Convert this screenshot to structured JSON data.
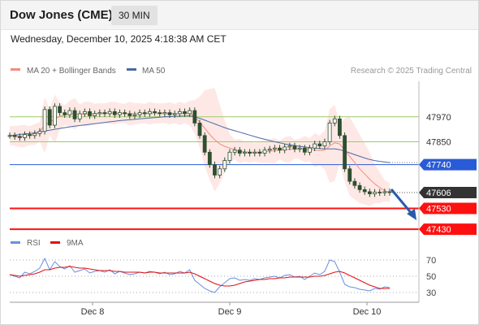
{
  "header": {
    "title": "Dow Jones (CME)",
    "timeframe": "30 MIN",
    "datetime": "Wednesday, December 10, 2025 4:18:38 AM CET"
  },
  "legend": {
    "ma20_label": "MA 20 + Bollinger Bands",
    "ma50_label": "MA 50",
    "rsi_label": "RSI",
    "ma9_label": "9MA"
  },
  "copyright": "Research © 2025 Trading Central",
  "colors": {
    "ma20": "#f28b82",
    "bollinger_fill": "#fde0de",
    "ma50": "#4a6aa5",
    "candle": "#2f4f2f",
    "green_level": "#9ccc65",
    "blue_level": "#2a5bd7",
    "red_level": "#ff1010",
    "arrow": "#2a5aa8",
    "rsi": "#6a8fe0",
    "rsi_ma": "#e21010"
  },
  "chart_data": {
    "type": "line",
    "x_ticks": [
      "Dec 8",
      "Dec 9",
      "Dec 10"
    ],
    "price": {
      "ylim": [
        47360,
        48180
      ],
      "last_price": 47606,
      "close_series": [
        47880,
        47875,
        47870,
        47885,
        47880,
        47890,
        47900,
        48005,
        47930,
        48020,
        47990,
        47980,
        48000,
        47960,
        47985,
        47995,
        47975,
        47985,
        47990,
        47985,
        47995,
        47980,
        47990,
        47985,
        47975,
        47980,
        47990,
        47985,
        47995,
        47990,
        47985,
        47990,
        47980,
        47985,
        47995,
        47985,
        48000,
        47940,
        47880,
        47800,
        47740,
        47690,
        47720,
        47760,
        47800,
        47810,
        47795,
        47800,
        47795,
        47800,
        47795,
        47810,
        47815,
        47820,
        47810,
        47825,
        47830,
        47815,
        47820,
        47800,
        47820,
        47840,
        47830,
        47850,
        47940,
        47960,
        47880,
        47720,
        47660,
        47640,
        47620,
        47610,
        47600,
        47608,
        47605,
        47610,
        47606
      ],
      "ma20_series": [
        47880,
        47878,
        47876,
        47878,
        47880,
        47885,
        47900,
        47930,
        47945,
        47960,
        47972,
        47978,
        47985,
        47985,
        47982,
        47983,
        47985,
        47986,
        47987,
        47987,
        47988,
        47988,
        47987,
        47986,
        47985,
        47985,
        47986,
        47986,
        47987,
        47987,
        47987,
        47988,
        47987,
        47986,
        47986,
        47987,
        47988,
        47970,
        47945,
        47915,
        47885,
        47860,
        47840,
        47828,
        47820,
        47812,
        47806,
        47802,
        47800,
        47800,
        47801,
        47803,
        47805,
        47807,
        47810,
        47812,
        47814,
        47815,
        47816,
        47815,
        47812,
        47810,
        47808,
        47810,
        47830,
        47845,
        47840,
        47810,
        47780,
        47750,
        47720,
        47695,
        47670,
        47648,
        47630,
        47615,
        47605
      ],
      "ma50_series": [
        47880,
        47882,
        47885,
        47888,
        47890,
        47893,
        47897,
        47902,
        47906,
        47910,
        47914,
        47918,
        47922,
        47925,
        47928,
        47931,
        47934,
        47937,
        47940,
        47943,
        47946,
        47949,
        47952,
        47954,
        47956,
        47958,
        47960,
        47962,
        47964,
        47966,
        47968,
        47970,
        47971,
        47972,
        47973,
        47974,
        47975,
        47970,
        47963,
        47954,
        47945,
        47936,
        47927,
        47918,
        47910,
        47903,
        47896,
        47889,
        47882,
        47875,
        47868,
        47862,
        47856,
        47850,
        47845,
        47840,
        47836,
        47832,
        47828,
        47825,
        47822,
        47820,
        47818,
        47816,
        47816,
        47816,
        47812,
        47805,
        47797,
        47788,
        47780,
        47772,
        47765,
        47760,
        47756,
        47753,
        47750
      ],
      "levels": [
        {
          "value": 47970,
          "label": "47970",
          "style": "green"
        },
        {
          "value": 47850,
          "label": "47850",
          "style": "green"
        },
        {
          "value": 47740,
          "label": "47740",
          "style": "blue"
        },
        {
          "value": 47530,
          "label": "47530",
          "style": "red"
        },
        {
          "value": 47430,
          "label": "47430",
          "style": "red"
        }
      ]
    },
    "rsi": {
      "ticks": [
        70,
        50,
        30
      ],
      "ylim": [
        20,
        80
      ],
      "rsi_series": [
        52,
        50,
        48,
        55,
        53,
        56,
        60,
        72,
        58,
        68,
        62,
        59,
        63,
        55,
        57,
        59,
        54,
        56,
        57,
        55,
        58,
        53,
        56,
        54,
        52,
        53,
        55,
        54,
        56,
        55,
        53,
        55,
        52,
        53,
        56,
        54,
        58,
        45,
        40,
        35,
        32,
        30,
        37,
        42,
        47,
        48,
        45,
        46,
        45,
        47,
        46,
        48,
        49,
        50,
        48,
        51,
        52,
        49,
        50,
        46,
        50,
        54,
        52,
        56,
        70,
        68,
        55,
        40,
        37,
        36,
        34,
        33,
        32,
        35,
        34,
        37,
        36
      ],
      "ma9_series": [
        52,
        51,
        50,
        51,
        52,
        53,
        55,
        58,
        58,
        60,
        61,
        61,
        62,
        61,
        60,
        60,
        59,
        58,
        57,
        57,
        57,
        56,
        56,
        55,
        55,
        55,
        55,
        54,
        55,
        55,
        54,
        54,
        54,
        54,
        54,
        54,
        55,
        53,
        50,
        47,
        44,
        41,
        39,
        38,
        38,
        39,
        41,
        43,
        44,
        45,
        46,
        46,
        47,
        47,
        48,
        48,
        49,
        49,
        49,
        49,
        49,
        50,
        50,
        51,
        53,
        55,
        56,
        54,
        51,
        48,
        45,
        42,
        39,
        37,
        35,
        35,
        35
      ]
    }
  }
}
